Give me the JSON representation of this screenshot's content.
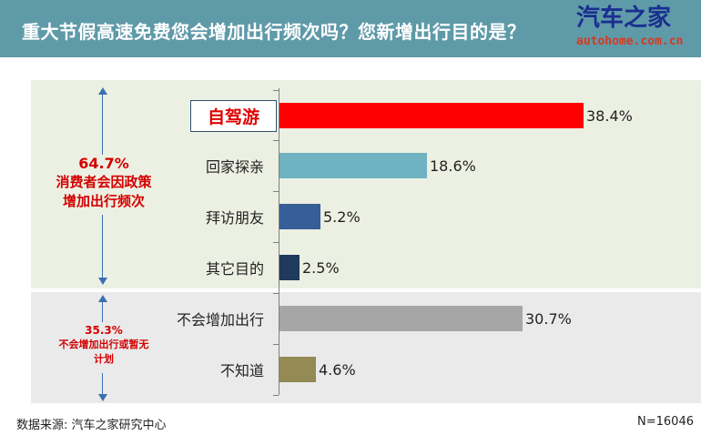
{
  "header": {
    "title": "重大节假高速免费您会增加出行频次吗？您新增出行目的是？",
    "logo_main": "汽车之家",
    "logo_url": "autohome.com.cn",
    "bg_color": "#5f9aa8"
  },
  "groups": {
    "increase": {
      "percent": "64.7%",
      "line1": "消费者会因政策",
      "line2": "增加出行频次"
    },
    "no_increase": {
      "percent": "35.3%",
      "line1": "不会增加出行或暂无",
      "line2": "计划"
    }
  },
  "footer": {
    "source": "数据来源: 汽车之家研究中心",
    "sample": "N=16046"
  },
  "chart_data": {
    "type": "bar",
    "orientation": "horizontal",
    "categories": [
      "自驾游",
      "回家探亲",
      "拜访朋友",
      "其它目的",
      "不会增加出行",
      "不知道"
    ],
    "values": [
      38.4,
      18.6,
      5.2,
      2.5,
      30.7,
      4.6
    ],
    "value_labels": [
      "38.4%",
      "18.6%",
      "5.2%",
      "2.5%",
      "30.7%",
      "4.6%"
    ],
    "colors": [
      "#ff0000",
      "#6fb2c1",
      "#365f98",
      "#203a5e",
      "#a6a6a6",
      "#948a54"
    ],
    "xlim": [
      0,
      40
    ],
    "highlight_category": "自驾游",
    "grid": false,
    "legend": "none"
  }
}
